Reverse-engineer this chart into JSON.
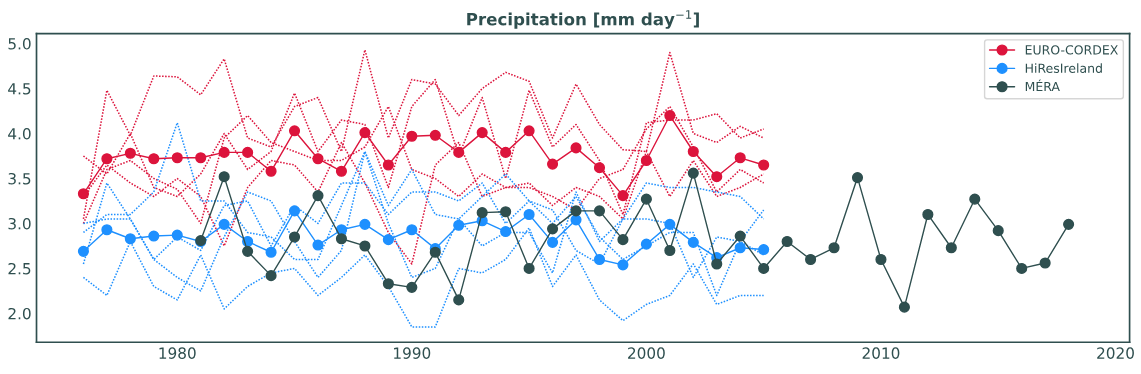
{
  "chart_data": {
    "type": "line",
    "title": "Precipitation [mm day$^{−1}$]",
    "xlim": [
      1974,
      2020.6
    ],
    "xticks": [
      1980,
      1990,
      2000,
      2010,
      2020
    ],
    "ylim": [
      1.68,
      5.11
    ],
    "yticks": [
      {
        "value": 2,
        "label": "2.0"
      },
      2.5,
      {
        "value": 3,
        "label": "3.0"
      },
      3.5,
      {
        "value": 4,
        "label": "4.0"
      },
      4.5,
      {
        "value": 5,
        "label": "5.0"
      }
    ],
    "grid": false,
    "legend": "top right",
    "series": [
      {
        "name": "EURO-CORDEX",
        "color": "#dc143c",
        "marker": "circle",
        "line_style": "solid",
        "x": [
          1976,
          1977,
          1978,
          1979,
          1980,
          1981,
          1982,
          1983,
          1984,
          1985,
          1986,
          1987,
          1988,
          1989,
          1990,
          1991,
          1992,
          1993,
          1994,
          1995,
          1996,
          1997,
          1998,
          1999,
          2000,
          2001,
          2002,
          2003,
          2004,
          2005
        ],
        "values": [
          3.33,
          3.72,
          3.78,
          3.72,
          3.73,
          3.73,
          3.79,
          3.79,
          3.58,
          4.03,
          3.72,
          3.58,
          4.01,
          3.65,
          3.97,
          3.98,
          3.79,
          4.01,
          3.79,
          4.03,
          3.66,
          3.84,
          3.62,
          3.31,
          3.7,
          4.2,
          3.8,
          3.52,
          3.73,
          3.65
        ]
      },
      {
        "name": "HiResIreland",
        "color": "#1e90ff",
        "marker": "circle",
        "line_style": "solid",
        "x": [
          1976,
          1977,
          1978,
          1979,
          1980,
          1981,
          1982,
          1983,
          1984,
          1985,
          1986,
          1987,
          1988,
          1989,
          1990,
          1991,
          1992,
          1993,
          1994,
          1995,
          1996,
          1997,
          1998,
          1999,
          2000,
          2001,
          2002,
          2003,
          2004,
          2005
        ],
        "values": [
          2.69,
          2.93,
          2.83,
          2.86,
          2.87,
          2.8,
          2.99,
          2.8,
          2.68,
          3.14,
          2.76,
          2.93,
          2.99,
          2.82,
          2.93,
          2.72,
          2.98,
          3.03,
          2.91,
          3.1,
          2.79,
          3.04,
          2.6,
          2.54,
          2.77,
          2.99,
          2.79,
          2.62,
          2.73,
          2.71
        ]
      },
      {
        "name": "MÉRA",
        "color": "#2f4f4f",
        "marker": "circle",
        "line_style": "solid",
        "x": [
          1981,
          1982,
          1983,
          1984,
          1985,
          1986,
          1987,
          1988,
          1989,
          1990,
          1991,
          1992,
          1993,
          1994,
          1995,
          1996,
          1997,
          1998,
          1999,
          2000,
          2001,
          2002,
          2003,
          2004,
          2005,
          2006,
          2007,
          2008,
          2009,
          2010,
          2011,
          2012,
          2013,
          2014,
          2015,
          2016,
          2017,
          2018
        ],
        "values": [
          2.81,
          3.52,
          2.69,
          2.42,
          2.85,
          3.31,
          2.83,
          2.75,
          2.33,
          2.29,
          2.68,
          2.15,
          3.12,
          3.13,
          2.5,
          2.94,
          3.14,
          3.14,
          2.82,
          3.27,
          2.7,
          3.56,
          2.55,
          2.86,
          2.5,
          2.8,
          2.6,
          2.73,
          3.51,
          2.6,
          2.07,
          3.1,
          2.73,
          3.27,
          2.92,
          2.5,
          2.56,
          2.99
        ]
      },
      {
        "color": "#dc143c",
        "marker": "none",
        "line_style": "dotted",
        "x": [
          1976,
          1977,
          1978,
          1979,
          1980,
          1981,
          1982,
          1983,
          1984,
          1985,
          1986,
          1987,
          1988,
          1989,
          1990,
          1991,
          1992,
          1993,
          1994,
          1995,
          1996,
          1997,
          1998,
          1999,
          2000,
          2001,
          2002,
          2003,
          2004,
          2005
        ],
        "values": [
          3.05,
          4.48,
          3.98,
          4.64,
          4.63,
          4.43,
          4.83,
          3.95,
          3.85,
          4.3,
          4.4,
          3.8,
          4.93,
          3.95,
          4.6,
          4.55,
          4.2,
          4.5,
          4.68,
          4.58,
          3.95,
          4.55,
          4.1,
          3.82,
          3.8,
          4.9,
          4.0,
          3.9,
          4.08,
          3.95
        ]
      },
      {
        "color": "#dc143c",
        "marker": "none",
        "line_style": "dotted",
        "x": [
          1976,
          1977,
          1978,
          1979,
          1980,
          1981,
          1982,
          1983,
          1984,
          1985,
          1986,
          1987,
          1988,
          1989,
          1990,
          1991,
          1992,
          1993,
          1994,
          1995,
          1996,
          1997,
          1998,
          1999,
          2000,
          2001,
          2002,
          2003,
          2004,
          2005
        ],
        "values": [
          3.75,
          3.55,
          4.0,
          3.4,
          3.3,
          3.55,
          4.0,
          3.6,
          3.8,
          4.45,
          3.8,
          4.15,
          4.1,
          3.4,
          4.3,
          4.6,
          3.75,
          4.4,
          3.5,
          4.48,
          3.85,
          4.1,
          3.7,
          3.1,
          4.12,
          4.15,
          4.15,
          4.22,
          3.95,
          4.05
        ]
      },
      {
        "color": "#dc143c",
        "marker": "none",
        "line_style": "dotted",
        "x": [
          1976,
          1977,
          1978,
          1979,
          1980,
          1981,
          1982,
          1983,
          1984,
          1985,
          1986,
          1987,
          1988,
          1989,
          1990,
          1991,
          1992,
          1993,
          1994,
          1995,
          1996,
          1997,
          1998,
          1999,
          2000,
          2001,
          2002,
          2003,
          2004,
          2005
        ],
        "values": [
          3.0,
          3.6,
          3.7,
          3.5,
          3.38,
          3.0,
          3.95,
          4.2,
          3.9,
          3.8,
          3.7,
          3.7,
          3.85,
          4.3,
          3.6,
          3.5,
          3.3,
          3.55,
          3.4,
          3.4,
          3.3,
          3.15,
          3.5,
          3.6,
          4.05,
          4.3,
          3.85,
          3.35,
          3.6,
          3.45
        ]
      },
      {
        "color": "#dc143c",
        "marker": "none",
        "line_style": "dotted",
        "x": [
          1976,
          1977,
          1978,
          1979,
          1980,
          1981,
          1982,
          1983,
          1984,
          1985,
          1986,
          1987,
          1988,
          1989,
          1990,
          1991,
          1992,
          1993,
          1994,
          1995,
          1996,
          1997,
          1998,
          1999,
          2000,
          2001,
          2002,
          2003,
          2004,
          2005
        ],
        "values": [
          3.3,
          3.65,
          3.45,
          3.3,
          3.5,
          3.3,
          2.75,
          3.4,
          3.7,
          3.65,
          3.35,
          3.9,
          3.45,
          2.9,
          2.55,
          3.65,
          3.9,
          3.3,
          3.4,
          3.45,
          3.2,
          3.4,
          3.3,
          3.05,
          3.8,
          3.3,
          3.7,
          3.3,
          3.4,
          3.55
        ]
      },
      {
        "color": "#1e90ff",
        "marker": "none",
        "line_style": "dotted",
        "x": [
          1976,
          1977,
          1978,
          1979,
          1980,
          1981,
          1982,
          1983,
          1984,
          1985,
          1986,
          1987,
          1988,
          1989,
          1990,
          1991,
          1992,
          1993,
          1994,
          1995,
          1996,
          1997,
          1998,
          1999,
          2000,
          2001,
          2002,
          2003,
          2004,
          2005
        ],
        "values": [
          2.4,
          2.2,
          2.8,
          2.3,
          2.15,
          2.65,
          2.05,
          2.3,
          2.45,
          2.5,
          2.2,
          2.4,
          2.65,
          2.3,
          1.85,
          1.85,
          2.5,
          2.45,
          2.6,
          2.95,
          2.3,
          2.65,
          2.15,
          1.92,
          2.1,
          2.2,
          2.55,
          2.1,
          2.2,
          2.2
        ]
      },
      {
        "color": "#1e90ff",
        "marker": "none",
        "line_style": "dotted",
        "x": [
          1976,
          1977,
          1978,
          1979,
          1980,
          1981,
          1982,
          1983,
          1984,
          1985,
          1986,
          1987,
          1988,
          1989,
          1990,
          1991,
          1992,
          1993,
          1994,
          1995,
          1996,
          1997,
          1998,
          1999,
          2000,
          2001,
          2002,
          2003,
          2004,
          2005
        ],
        "values": [
          2.55,
          3.45,
          3.05,
          2.6,
          2.4,
          2.25,
          2.85,
          3.35,
          3.25,
          2.8,
          2.4,
          2.7,
          3.8,
          3.2,
          3.6,
          3.1,
          3.05,
          3.3,
          3.55,
          3.25,
          3.0,
          3.3,
          2.85,
          2.6,
          2.75,
          2.9,
          2.9,
          2.2,
          2.8,
          3.15
        ]
      },
      {
        "color": "#1e90ff",
        "marker": "none",
        "line_style": "dotted",
        "x": [
          1976,
          1977,
          1978,
          1979,
          1980,
          1981,
          1982,
          1983,
          1984,
          1985,
          1986,
          1987,
          1988,
          1989,
          1990,
          1991,
          1992,
          1993,
          1994,
          1995,
          1996,
          1997,
          1998,
          1999,
          2000,
          2001,
          2002,
          2003,
          2004,
          2005
        ],
        "values": [
          3.0,
          3.05,
          3.05,
          2.6,
          2.85,
          2.7,
          3.2,
          3.25,
          2.75,
          3.2,
          3.0,
          3.45,
          3.45,
          3.1,
          3.35,
          3.35,
          3.25,
          3.45,
          3.0,
          3.25,
          3.15,
          2.7,
          2.55,
          3.05,
          3.45,
          3.4,
          3.4,
          3.35,
          3.3,
          3.05
        ]
      },
      {
        "color": "#1e90ff",
        "marker": "none",
        "line_style": "dotted",
        "x": [
          1976,
          1977,
          1978,
          1979,
          1980,
          1981,
          1982,
          1983,
          1984,
          1985,
          1986,
          1987,
          1988,
          1989,
          1990,
          1991,
          1992,
          1993,
          1994,
          1995,
          1996,
          1997,
          1998,
          1999,
          2000,
          2001,
          2002,
          2003,
          2004,
          2005
        ],
        "values": [
          2.9,
          3.1,
          3.1,
          3.35,
          4.12,
          3.25,
          3.25,
          2.9,
          2.85,
          2.6,
          2.6,
          3.2,
          3.8,
          3.0,
          2.4,
          2.5,
          3.05,
          2.75,
          2.9,
          2.9,
          2.45,
          3.35,
          2.8,
          3.05,
          3.05,
          3.0,
          2.4,
          2.85,
          2.8,
          2.65
        ]
      }
    ]
  }
}
